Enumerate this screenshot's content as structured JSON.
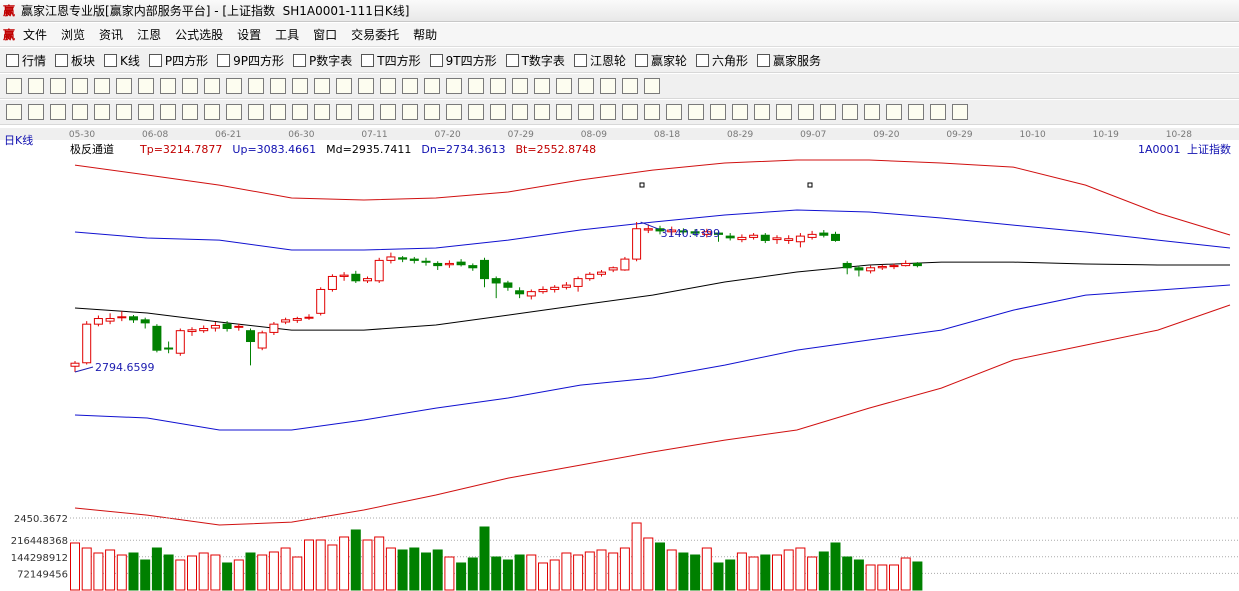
{
  "window_title": "赢家江恩专业版[赢家内部服务平台] - [上证指数  SH1A0001-111日K线]",
  "menu": [
    "文件",
    "浏览",
    "资讯",
    "江恩",
    "公式选股",
    "设置",
    "工具",
    "窗口",
    "交易委托",
    "帮助"
  ],
  "toolbar": [
    "行情",
    "板块",
    "K线",
    "P四方形",
    "9P四方形",
    "P数字表",
    "T四方形",
    "9T四方形",
    "T数字表",
    "江恩轮",
    "赢家轮",
    "六角形",
    "赢家服务"
  ],
  "chart_data": {
    "type": "candlestick",
    "period_label": "日K线",
    "indicator_name": "极反通道",
    "indicator_values": [
      "Tp=3214.7877",
      "Up=3083.4661",
      "Md=2935.7411",
      "Dn=2734.3613",
      "Bt=2552.8748"
    ],
    "symbol": "1A0001",
    "symbol_name": "上证指数",
    "date_axis_labels": [
      "05-30",
      "06-08",
      "06-21",
      "06-30",
      "07-11",
      "07-20",
      "07-29",
      "08-09",
      "08-18",
      "08-29",
      "09-07",
      "09-20",
      "09-29",
      "10-10",
      "10-19",
      "10-28"
    ],
    "ylim": [
      2442,
      3295
    ],
    "up_color": "#e00000",
    "down_color": "#008000",
    "candles": {
      "open": [
        2808,
        2816,
        2905,
        2912,
        2920,
        2922,
        2915,
        2900,
        2850,
        2838,
        2888,
        2890,
        2896,
        2905,
        2898,
        2890,
        2850,
        2886,
        2910,
        2914,
        2920,
        2930,
        2985,
        3015,
        3020,
        3005,
        3005,
        3052,
        3058,
        3055,
        3050,
        3045,
        3042,
        3048,
        3040,
        3052,
        3010,
        3000,
        2982,
        2970,
        2980,
        2985,
        2990,
        2992,
        3010,
        3020,
        3030,
        3030,
        3055,
        3122,
        3125,
        3118,
        3120,
        3118,
        3112,
        3115,
        3108,
        3100,
        3105,
        3110,
        3100,
        3098,
        3095,
        3105,
        3115,
        3112,
        3045,
        3035,
        3028,
        3035,
        3038,
        3040,
        3045
      ],
      "high": [
        2820,
        2912,
        2925,
        2930,
        2935,
        2926,
        2920,
        2905,
        2865,
        2895,
        2898,
        2902,
        2910,
        2912,
        2906,
        2895,
        2890,
        2910,
        2920,
        2922,
        2928,
        2990,
        3020,
        3025,
        3028,
        3015,
        3058,
        3070,
        3062,
        3060,
        3058,
        3050,
        3052,
        3055,
        3045,
        3058,
        3015,
        3005,
        2990,
        2985,
        2992,
        2995,
        3002,
        3015,
        3025,
        3030,
        3038,
        3060,
        3140.4399,
        3135,
        3132,
        3130,
        3126,
        3124,
        3125,
        3120,
        3115,
        3112,
        3115,
        3115,
        3110,
        3110,
        3115,
        3120,
        3122,
        3118,
        3050,
        3040,
        3040,
        3042,
        3045,
        3052,
        3048
      ],
      "low": [
        2794.6599,
        2812,
        2900,
        2905,
        2912,
        2908,
        2895,
        2840,
        2838,
        2832,
        2878,
        2885,
        2888,
        2888,
        2890,
        2810,
        2845,
        2880,
        2905,
        2908,
        2915,
        2925,
        2980,
        3005,
        3000,
        3000,
        3000,
        3045,
        3048,
        3045,
        3040,
        3030,
        3035,
        3038,
        3028,
        2990,
        2965,
        2982,
        2965,
        2962,
        2975,
        2978,
        2985,
        2980,
        3005,
        3015,
        3025,
        3028,
        3050,
        3115,
        3112,
        3110,
        3112,
        3108,
        3105,
        3095,
        3098,
        3094,
        3100,
        3092,
        3090,
        3090,
        3082,
        3100,
        3105,
        3095,
        3020,
        3015,
        3022,
        3030,
        3032,
        3038,
        3036
      ],
      "close": [
        2815,
        2905,
        2918,
        2918,
        2922,
        2915,
        2908,
        2845,
        2848,
        2890,
        2892,
        2895,
        2902,
        2895,
        2900,
        2865,
        2885,
        2905,
        2915,
        2918,
        2921,
        2985,
        3015,
        3018,
        3005,
        3010,
        3052,
        3060,
        3055,
        3052,
        3048,
        3040,
        3045,
        3042,
        3035,
        3010,
        3000,
        2990,
        2975,
        2980,
        2985,
        2990,
        2995,
        3010,
        3020,
        3025,
        3035,
        3055,
        3125,
        3125,
        3120,
        3122,
        3118,
        3115,
        3118,
        3112,
        3104,
        3105,
        3110,
        3098,
        3104,
        3102,
        3108,
        3112,
        3110,
        3098,
        3035,
        3030,
        3035,
        3038,
        3040,
        3045,
        3040
      ]
    },
    "high_label": "3140.4399",
    "low_label": "2794.6599",
    "label_color": "#1c1cb0",
    "channel": [
      {
        "color": "#d01010",
        "values": [
          3271.8,
          3248.8,
          3225.7,
          3195.8,
          3191.2,
          3195.8,
          3209.6,
          3237.3,
          3260.3,
          3276.5,
          3283.4,
          3283.4,
          3276.5,
          3267.2,
          3225.7,
          3161.2,
          3110.5
        ]
      },
      {
        "color": "#1010d0",
        "values": [
          3117.4,
          3103.6,
          3098.9,
          3075.9,
          3075.9,
          3080.5,
          3098.9,
          3122.0,
          3140.4,
          3156.6,
          3168.1,
          3163.5,
          3149.7,
          3133.5,
          3117.4,
          3098.9,
          3080.5
        ]
      },
      {
        "color": "#000000",
        "values": [
          2942.2,
          2930.7,
          2909.9,
          2891.4,
          2891.4,
          2903.0,
          2926.0,
          2949.1,
          2972.1,
          3002.1,
          3025.2,
          3041.3,
          3048.2,
          3048.2,
          3043.6,
          3041.3,
          3041.3
        ]
      },
      {
        "color": "#1010d0",
        "values": [
          2695.5,
          2688.6,
          2660.9,
          2660.9,
          2684.0,
          2711.6,
          2734.7,
          2764.6,
          2780.8,
          2810.7,
          2845.3,
          2868.4,
          2891.4,
          2937.5,
          2972.1,
          2983.6,
          2995.2
        ]
      },
      {
        "color": "#d01010",
        "values": [
          2481.1,
          2464.9,
          2441.9,
          2448.8,
          2476.5,
          2511.1,
          2550.2,
          2580.2,
          2610.2,
          2637.8,
          2660.9,
          2711.6,
          2757.7,
          2822.3,
          2856.8,
          2891.4,
          2949.1
        ]
      }
    ],
    "volume": {
      "top_label": "2450.3672",
      "ylim": [
        0,
        312900000
      ],
      "yticks": [
        72149456,
        144298912,
        216448368
      ],
      "values": [
        204300000,
        182500000,
        160800000,
        173900000,
        152100000,
        160800000,
        130400000,
        182500000,
        152100000,
        130400000,
        147800000,
        160800000,
        152100000,
        117400000,
        130400000,
        160800000,
        152100000,
        165200000,
        182500000,
        143400000,
        217300000,
        217300000,
        195600000,
        230400000,
        260800000,
        217300000,
        230400000,
        182500000,
        173900000,
        182500000,
        160800000,
        173900000,
        143400000,
        117400000,
        139100000,
        273800000,
        143400000,
        130400000,
        152100000,
        152100000,
        117400000,
        130400000,
        160800000,
        152100000,
        165200000,
        173900000,
        160800000,
        182500000,
        291200000,
        226000000,
        204300000,
        173900000,
        160800000,
        152100000,
        182500000,
        117400000,
        130400000,
        160800000,
        143400000,
        152100000,
        152100000,
        173900000,
        182500000,
        143400000,
        165200000,
        204300000,
        143400000,
        130400000,
        108700000,
        108700000,
        108700000,
        139100000,
        121700000
      ]
    }
  }
}
